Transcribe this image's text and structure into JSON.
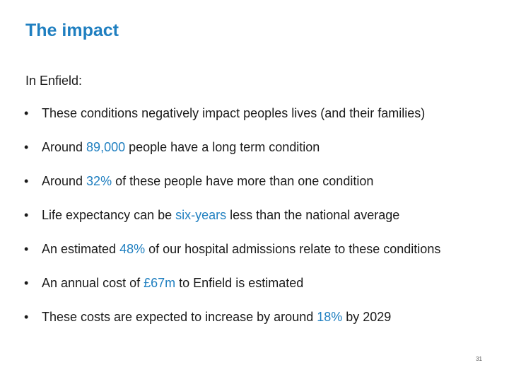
{
  "slide": {
    "title": "The impact",
    "intro": "In Enfield:",
    "bullet_glyph": "•",
    "page_number": "31",
    "accent_color": "#1f7fc0",
    "bullets": [
      {
        "before": "These conditions negatively impact peoples lives (and their families)",
        "highlight": "",
        "after": ""
      },
      {
        "before": "Around ",
        "highlight": "89,000",
        "after": " people have a long term condition"
      },
      {
        "before": "Around ",
        "highlight": "32%",
        "after": " of these people have more than one condition"
      },
      {
        "before": "Life expectancy can be ",
        "highlight": "six-years",
        "after": " less than the national average"
      },
      {
        "before": "An estimated ",
        "highlight": "48%",
        "after": " of our hospital admissions relate to these conditions"
      },
      {
        "before": "An annual cost of ",
        "highlight": "£67m",
        "after": " to Enfield is estimated"
      },
      {
        "before": "These costs are expected to increase by around ",
        "highlight": "18%",
        "after": " by 2029"
      }
    ]
  }
}
